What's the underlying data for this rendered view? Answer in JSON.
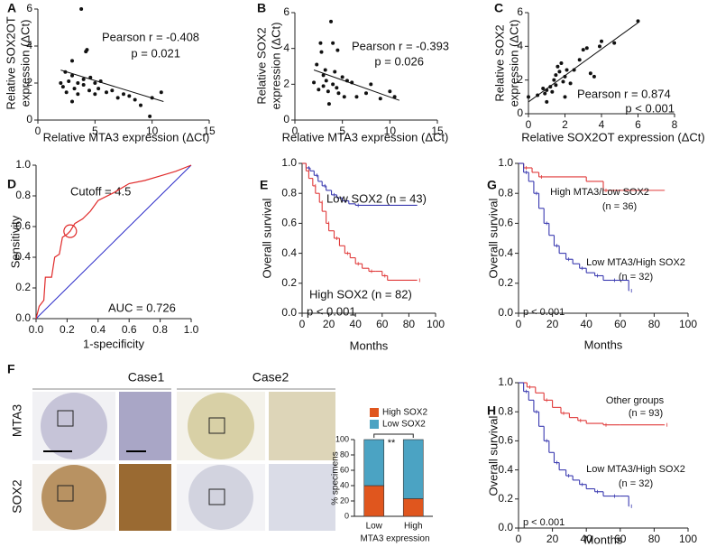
{
  "chart_data": [
    {
      "type": "scatter",
      "panel_label": "A",
      "x": [
        2,
        2.2,
        2.5,
        2.7,
        3,
        3,
        3.2,
        3.5,
        3.5,
        3.8,
        4,
        4,
        4.2,
        4.3,
        4.5,
        4.6,
        5,
        5,
        5.3,
        5.5,
        6,
        6.5,
        7,
        7.5,
        8,
        8.5,
        9,
        9.8,
        10,
        10.8,
        3,
        2.4
      ],
      "values": [
        2,
        1.8,
        1.5,
        2.1,
        3.2,
        2.4,
        1.7,
        1.4,
        2,
        6,
        2.2,
        1.9,
        3.7,
        3.8,
        1.6,
        2.3,
        2,
        1.4,
        1.7,
        2.1,
        1.5,
        1.6,
        1.2,
        1.4,
        1.3,
        1.1,
        0.8,
        0.2,
        1.2,
        1.5,
        1,
        2.6
      ],
      "trendline": {
        "x": [
          2,
          11
        ],
        "values": [
          2.7,
          1.0
        ]
      },
      "xlim": [
        0,
        15
      ],
      "xticks": [
        0,
        5,
        10,
        15
      ],
      "ylim": [
        0,
        6
      ],
      "yticks": [
        0,
        2,
        4,
        6
      ],
      "xlabel": "Relative MTA3 expression (ΔCt)",
      "ylabel": [
        "Relative SOX2OT",
        "expression (ΔCt)"
      ],
      "annotations": [
        "Pearson r = -0.408",
        "p = 0.021"
      ]
    },
    {
      "type": "scatter",
      "panel_label": "B",
      "x": [
        2,
        2.3,
        2.5,
        2.7,
        3,
        3,
        3.3,
        3.5,
        3.6,
        3.8,
        4,
        4,
        4.2,
        4.4,
        4.5,
        4.6,
        5,
        5.2,
        5.5,
        6,
        6.5,
        7.5,
        8,
        9,
        10,
        10.5,
        2.8,
        3.2
      ],
      "values": [
        2.1,
        3.1,
        1.7,
        4.3,
        2.5,
        1.9,
        2.2,
        1.6,
        0.9,
        5.5,
        4.3,
        2,
        2.7,
        1.8,
        3.9,
        1.5,
        2.4,
        1.3,
        2.2,
        2.1,
        1.3,
        1.5,
        2,
        1.2,
        1.6,
        1.3,
        3.8,
        2.8
      ],
      "trendline": {
        "x": [
          2,
          11
        ],
        "values": [
          2.8,
          1.1
        ]
      },
      "xlim": [
        0,
        15
      ],
      "xticks": [
        0,
        5,
        10,
        15
      ],
      "ylim": [
        0,
        6
      ],
      "yticks": [
        0,
        2,
        4,
        6
      ],
      "xlabel": "Relative MTA3 expression (ΔCt)",
      "ylabel": [
        "Relative SOX2",
        "expression (ΔCt)"
      ],
      "annotations": [
        "Pearson r = -0.393",
        "p = 0.026"
      ]
    },
    {
      "type": "scatter",
      "panel_label": "C",
      "x": [
        0,
        0.5,
        0.8,
        0.9,
        1,
        1,
        1.2,
        1.3,
        1.4,
        1.5,
        1.5,
        1.6,
        1.7,
        1.8,
        1.9,
        2,
        2,
        2.1,
        2.3,
        2.5,
        2.8,
        3,
        3.2,
        3.4,
        3.6,
        3.9,
        4,
        4.7,
        6
      ],
      "values": [
        1,
        1.1,
        1.5,
        1.2,
        0.7,
        1.4,
        1.6,
        1.3,
        2,
        1.7,
        2.3,
        2.8,
        2.5,
        3,
        1.9,
        2.2,
        1,
        2.6,
        1.8,
        2.6,
        3.2,
        3.8,
        3.9,
        2.4,
        2.2,
        4,
        4.3,
        4.2,
        5.5
      ],
      "trendline": {
        "x": [
          0,
          6
        ],
        "values": [
          0.7,
          5.4
        ]
      },
      "xlim": [
        0,
        8
      ],
      "xticks": [
        0,
        2,
        4,
        6,
        8
      ],
      "ylim": [
        0,
        6
      ],
      "yticks": [
        0,
        2,
        4,
        6
      ],
      "xlabel": "Relative SOX2OT expression (ΔCt)",
      "ylabel": [
        "Relative SOX2",
        "expression (ΔCt)"
      ],
      "annotations": [
        "Pearson r = 0.874",
        "p < 0.001"
      ]
    },
    {
      "type": "roc",
      "panel_label": "D",
      "series": [
        {
          "color": "#e02a2a",
          "x": [
            0,
            0.02,
            0.05,
            0.06,
            0.1,
            0.12,
            0.15,
            0.17,
            0.2,
            0.22,
            0.25,
            0.3,
            0.35,
            0.4,
            0.5,
            0.6,
            0.7,
            0.8,
            0.9,
            1.0
          ],
          "values": [
            0,
            0.08,
            0.12,
            0.27,
            0.27,
            0.4,
            0.42,
            0.53,
            0.55,
            0.57,
            0.62,
            0.65,
            0.7,
            0.77,
            0.82,
            0.88,
            0.9,
            0.93,
            0.96,
            1.0
          ]
        }
      ],
      "reference_color": "#2a2ac8",
      "cutoff_point": {
        "x": 0.22,
        "y": 0.57
      },
      "xlim": [
        0,
        1
      ],
      "xticks": [
        {
          "value": 0,
          "label": "0.0"
        },
        {
          "value": 0.2,
          "label": "0.2"
        },
        {
          "value": 0.4,
          "label": "0.4"
        },
        {
          "value": 0.6,
          "label": "0.6"
        },
        {
          "value": 0.8,
          "label": "0.8"
        },
        {
          "value": 1,
          "label": "1.0"
        }
      ],
      "ylim": [
        0,
        1
      ],
      "yticks": [
        {
          "value": 0,
          "label": "0.0"
        },
        {
          "value": 0.2,
          "label": "0.2"
        },
        {
          "value": 0.4,
          "label": "0.4"
        },
        {
          "value": 0.6,
          "label": "0.6"
        },
        {
          "value": 0.8,
          "label": "0.8"
        },
        {
          "value": 1,
          "label": "1.0"
        }
      ],
      "xlabel": "1-specificity",
      "ylabel": "Sensitivity",
      "annotations": [
        "Cutoff = 4.5",
        "AUC = 0.726"
      ]
    },
    {
      "type": "step",
      "panel_label": "E",
      "series": [
        {
          "name": "Low SOX2 (n = 43)",
          "color": "#3a3ab0",
          "x": [
            0,
            3,
            6,
            9,
            12,
            15,
            18,
            22,
            26,
            30,
            35,
            40,
            86
          ],
          "values": [
            1,
            0.97,
            0.95,
            0.92,
            0.88,
            0.85,
            0.82,
            0.79,
            0.77,
            0.75,
            0.73,
            0.72,
            0.72
          ]
        },
        {
          "name": "High SOX2 (n = 82)",
          "color": "#e03a3a",
          "x": [
            0,
            3,
            5,
            8,
            10,
            13,
            15,
            18,
            20,
            24,
            28,
            32,
            36,
            40,
            45,
            50,
            55,
            60,
            64,
            86
          ],
          "values": [
            1,
            0.95,
            0.9,
            0.85,
            0.8,
            0.74,
            0.68,
            0.6,
            0.55,
            0.5,
            0.45,
            0.4,
            0.37,
            0.33,
            0.3,
            0.28,
            0.28,
            0.25,
            0.22,
            0.22
          ]
        }
      ],
      "xlim": [
        0,
        100
      ],
      "xticks": [
        0,
        20,
        40,
        60,
        80,
        100
      ],
      "ylim": [
        0,
        1
      ],
      "yticks": [
        {
          "value": 0,
          "label": "0.0"
        },
        {
          "value": 0.2,
          "label": "0.2"
        },
        {
          "value": 0.4,
          "label": "0.4"
        },
        {
          "value": 0.6,
          "label": "0.6"
        },
        {
          "value": 0.8,
          "label": "0.8"
        },
        {
          "value": 1,
          "label": "1.0"
        }
      ],
      "xlabel": "Months",
      "ylabel": "Overall survival",
      "annotations": [
        "p < 0.001"
      ]
    },
    {
      "type": "step",
      "panel_label": "G",
      "series": [
        {
          "name": "High MTA3/Low SOX2",
          "color": "#e03a3a",
          "x": [
            0,
            3,
            8,
            12,
            40,
            50,
            86
          ],
          "values": [
            1,
            0.97,
            0.94,
            0.91,
            0.88,
            0.82,
            0.82
          ]
        },
        {
          "name": "Low MTA3/High SOX2",
          "color": "#3a3ab0",
          "x": [
            0,
            3,
            6,
            9,
            12,
            15,
            18,
            21,
            24,
            28,
            32,
            36,
            40,
            45,
            50,
            55,
            60,
            65
          ],
          "values": [
            1,
            0.94,
            0.88,
            0.8,
            0.7,
            0.6,
            0.52,
            0.45,
            0.4,
            0.36,
            0.33,
            0.3,
            0.27,
            0.25,
            0.22,
            0.22,
            0.22,
            0.15
          ]
        }
      ],
      "xlim": [
        0,
        100
      ],
      "xticks": [
        0,
        20,
        40,
        60,
        80,
        100
      ],
      "ylim": [
        0,
        1
      ],
      "yticks": [
        {
          "value": 0,
          "label": "0.0"
        },
        {
          "value": 0.2,
          "label": "0.2"
        },
        {
          "value": 0.4,
          "label": "0.4"
        },
        {
          "value": 0.6,
          "label": "0.6"
        },
        {
          "value": 0.8,
          "label": "0.8"
        },
        {
          "value": 1,
          "label": "1.0"
        }
      ],
      "xlabel": "Months",
      "ylabel": "Overall survival",
      "annotations": [
        "(n = 36)",
        "(n = 32)",
        "p < 0.001"
      ]
    },
    {
      "type": "bar",
      "panel_label": "F",
      "categories": [
        "Low",
        "High"
      ],
      "series": [
        {
          "name": "High SOX2",
          "color": "#e0561e",
          "values": [
            40,
            23
          ]
        },
        {
          "name": "Low SOX2",
          "color": "#4ba3c3",
          "values": [
            60,
            77
          ]
        }
      ],
      "ylim": [
        0,
        100
      ],
      "yticks": [
        0,
        20,
        40,
        60,
        80,
        100
      ],
      "xlabel": "MTA3 expression",
      "ylabel": "% specimens",
      "annotations": [
        "**"
      ]
    },
    {
      "type": "step",
      "panel_label": "H",
      "series": [
        {
          "name": "Other groups",
          "color": "#e03a3a",
          "x": [
            0,
            5,
            10,
            15,
            20,
            25,
            30,
            35,
            40,
            50,
            60,
            86
          ],
          "values": [
            1,
            0.97,
            0.93,
            0.88,
            0.83,
            0.79,
            0.76,
            0.74,
            0.72,
            0.71,
            0.71,
            0.71
          ]
        },
        {
          "name": "Low MTA3/High SOX2",
          "color": "#3a3ab0",
          "x": [
            0,
            3,
            6,
            9,
            12,
            15,
            18,
            21,
            24,
            28,
            32,
            36,
            40,
            45,
            50,
            55,
            60,
            65
          ],
          "values": [
            1,
            0.94,
            0.88,
            0.8,
            0.7,
            0.6,
            0.52,
            0.45,
            0.4,
            0.36,
            0.33,
            0.3,
            0.27,
            0.25,
            0.22,
            0.22,
            0.22,
            0.15
          ]
        }
      ],
      "xlim": [
        0,
        100
      ],
      "xticks": [
        0,
        20,
        40,
        60,
        80,
        100
      ],
      "ylim": [
        0,
        1
      ],
      "yticks": [
        {
          "value": 0,
          "label": "0.0"
        },
        {
          "value": 0.2,
          "label": "0.2"
        },
        {
          "value": 0.4,
          "label": "0.4"
        },
        {
          "value": 0.6,
          "label": "0.6"
        },
        {
          "value": 0.8,
          "label": "0.8"
        },
        {
          "value": 1,
          "label": "1.0"
        }
      ],
      "xlabel": "Months",
      "ylabel": "Overall survival",
      "annotations": [
        "(n = 93)",
        "(n = 32)",
        "p < 0.001"
      ]
    }
  ],
  "staining": {
    "columns": [
      "Case1",
      "Case2"
    ],
    "rows": [
      "MTA3",
      "SOX2"
    ]
  }
}
